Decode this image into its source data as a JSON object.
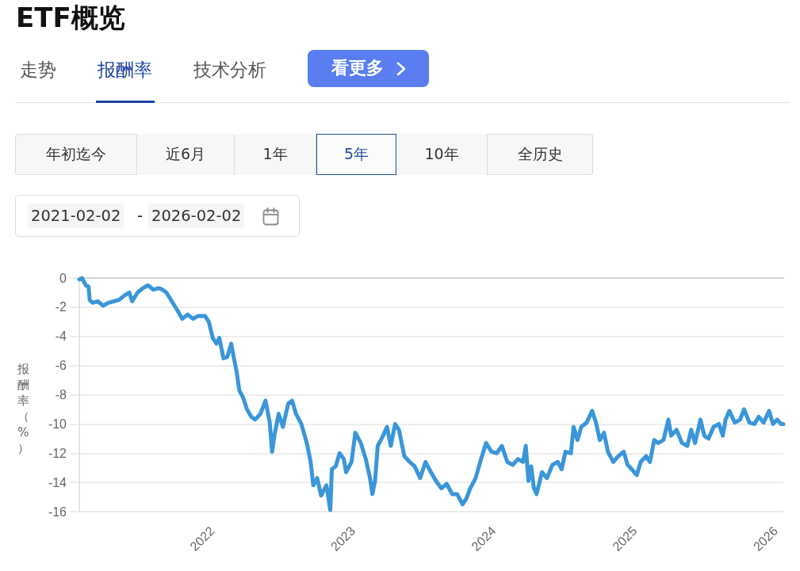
{
  "chart_data": {
    "type": "line",
    "title": "ETF概览",
    "ylabel": "报酬率（%）",
    "annotations": [
      "走势",
      "报酬率",
      "技术分析",
      "看更多",
      "年初迄今",
      "近6月",
      "1年",
      "5年",
      "10年",
      "全历史",
      "2021-02-02",
      "-",
      "2026-02-02"
    ],
    "color": "#3a96d9",
    "x": [
      "2021-02-02",
      "2021-02-09",
      "2021-02-19",
      "2021-02-26",
      "2021-03-01",
      "2021-03-08",
      "2021-03-22",
      "2021-04-05",
      "2021-04-18",
      "2021-05-02",
      "2021-05-16",
      "2021-05-30",
      "2021-06-12",
      "2021-06-19",
      "2021-07-03",
      "2021-07-17",
      "2021-07-30",
      "2021-08-13",
      "2021-08-27",
      "2021-09-06",
      "2021-09-16",
      "2021-09-30",
      "2021-10-14",
      "2021-10-27",
      "2021-11-10",
      "2021-11-24",
      "2021-12-07",
      "2021-12-25",
      "2022-01-04",
      "2022-01-14",
      "2022-01-24",
      "2022-01-31",
      "2022-02-11",
      "2022-02-21",
      "2022-03-03",
      "2022-03-10",
      "2022-03-17",
      "2022-03-24",
      "2022-04-03",
      "2022-04-13",
      "2022-04-24",
      "2022-05-04",
      "2022-05-18",
      "2022-05-31",
      "2022-06-11",
      "2022-06-17",
      "2022-06-23",
      "2022-07-04",
      "2022-07-15",
      "2022-07-29",
      "2022-08-08",
      "2022-08-18",
      "2022-09-01",
      "2022-09-15",
      "2022-09-25",
      "2022-10-02",
      "2022-10-12",
      "2022-10-22",
      "2022-11-05",
      "2022-11-15",
      "2022-11-19",
      "2022-11-29",
      "2022-12-09",
      "2022-12-20",
      "2022-12-26",
      "2023-01-09",
      "2023-01-19",
      "2023-02-02",
      "2023-02-15",
      "2023-02-26",
      "2023-03-04",
      "2023-03-11",
      "2023-03-18",
      "2023-04-01",
      "2023-04-11",
      "2023-04-21",
      "2023-05-02",
      "2023-05-12",
      "2023-05-26",
      "2023-06-09",
      "2023-06-22",
      "2023-07-06",
      "2023-07-20",
      "2023-08-03",
      "2023-08-16",
      "2023-08-30",
      "2023-09-13",
      "2023-09-27",
      "2023-10-10",
      "2023-10-24",
      "2023-11-03",
      "2023-11-13",
      "2023-11-27",
      "2023-12-11",
      "2023-12-24",
      "2024-01-07",
      "2024-01-21",
      "2024-02-03",
      "2024-02-17",
      "2024-03-02",
      "2024-03-16",
      "2024-03-29",
      "2024-04-05",
      "2024-04-12",
      "2024-04-19",
      "2024-04-26",
      "2024-05-03",
      "2024-05-17",
      "2024-05-30",
      "2024-06-13",
      "2024-06-27",
      "2024-07-07",
      "2024-07-17",
      "2024-07-31",
      "2024-08-07",
      "2024-08-17",
      "2024-08-27",
      "2024-09-10",
      "2024-09-24",
      "2024-10-04",
      "2024-10-14",
      "2024-10-25",
      "2024-11-04",
      "2024-11-18",
      "2024-12-01",
      "2024-12-15",
      "2024-12-25",
      "2025-01-05",
      "2025-01-18",
      "2025-01-28",
      "2025-02-11",
      "2025-02-21",
      "2025-03-04",
      "2025-03-14",
      "2025-03-28",
      "2025-04-10",
      "2025-04-17",
      "2025-05-01",
      "2025-05-15",
      "2025-05-29",
      "2025-06-08",
      "2025-06-18",
      "2025-07-02",
      "2025-07-12",
      "2025-07-23",
      "2025-08-05",
      "2025-08-19",
      "2025-08-29",
      "2025-09-05",
      "2025-09-15",
      "2025-09-29",
      "2025-10-13",
      "2025-10-23",
      "2025-11-06",
      "2025-11-19",
      "2025-11-30",
      "2025-12-13",
      "2025-12-27",
      "2026-01-06",
      "2026-01-17",
      "2026-01-27",
      "2026-02-02"
    ],
    "values": [
      -0.1,
      0.0,
      -0.5,
      -0.6,
      -1.5,
      -1.7,
      -1.6,
      -1.9,
      -1.7,
      -1.6,
      -1.5,
      -1.2,
      -1.0,
      -1.6,
      -1.0,
      -0.7,
      -0.5,
      -0.8,
      -0.7,
      -0.8,
      -1.0,
      -1.6,
      -2.2,
      -2.8,
      -2.5,
      -2.8,
      -2.6,
      -2.6,
      -3.0,
      -4.1,
      -4.5,
      -4.1,
      -5.5,
      -5.4,
      -4.5,
      -5.5,
      -6.4,
      -7.7,
      -8.2,
      -9.0,
      -9.5,
      -9.7,
      -9.3,
      -8.4,
      -9.9,
      -11.9,
      -10.8,
      -9.3,
      -10.2,
      -8.6,
      -8.4,
      -9.3,
      -10.0,
      -11.3,
      -12.6,
      -14.2,
      -13.7,
      -14.9,
      -14.2,
      -15.9,
      -13.1,
      -12.9,
      -12.0,
      -12.4,
      -13.3,
      -12.6,
      -10.6,
      -11.3,
      -12.4,
      -13.7,
      -14.8,
      -13.9,
      -11.5,
      -10.8,
      -10.2,
      -11.5,
      -10.0,
      -10.4,
      -12.2,
      -12.6,
      -12.9,
      -13.7,
      -12.6,
      -13.3,
      -13.9,
      -14.4,
      -14.1,
      -14.8,
      -14.8,
      -15.5,
      -15.1,
      -14.4,
      -13.7,
      -12.4,
      -11.3,
      -11.9,
      -12.0,
      -11.5,
      -12.6,
      -12.8,
      -12.4,
      -12.6,
      -11.5,
      -13.9,
      -12.9,
      -14.4,
      -14.8,
      -13.3,
      -13.7,
      -12.8,
      -12.6,
      -13.1,
      -11.9,
      -12.0,
      -10.2,
      -11.1,
      -10.2,
      -9.9,
      -9.1,
      -9.9,
      -11.1,
      -10.6,
      -11.9,
      -12.6,
      -12.2,
      -11.9,
      -12.8,
      -13.1,
      -13.5,
      -12.6,
      -12.2,
      -12.6,
      -11.1,
      -11.3,
      -11.1,
      -9.7,
      -10.8,
      -10.4,
      -11.3,
      -11.5,
      -10.4,
      -11.3,
      -9.7,
      -10.8,
      -11.0,
      -10.2,
      -10.0,
      -10.8,
      -9.7,
      -9.1,
      -9.9,
      -9.7,
      -9.0,
      -9.9,
      -10.0,
      -9.5,
      -9.9,
      -9.1,
      -10.0,
      -9.7,
      -10.0,
      -10.0
    ],
    "xlim": [
      "2021-02-02",
      "2026-02-02"
    ],
    "xticks": [
      "2022",
      "2023",
      "2024",
      "2025",
      "2026"
    ],
    "ylim": [
      -16,
      0
    ],
    "yticks": [
      -16,
      -14,
      -12,
      -10,
      -8,
      -6,
      -4,
      -2,
      0
    ],
    "grid": "y",
    "marker": "none",
    "line_style": "solid"
  }
}
